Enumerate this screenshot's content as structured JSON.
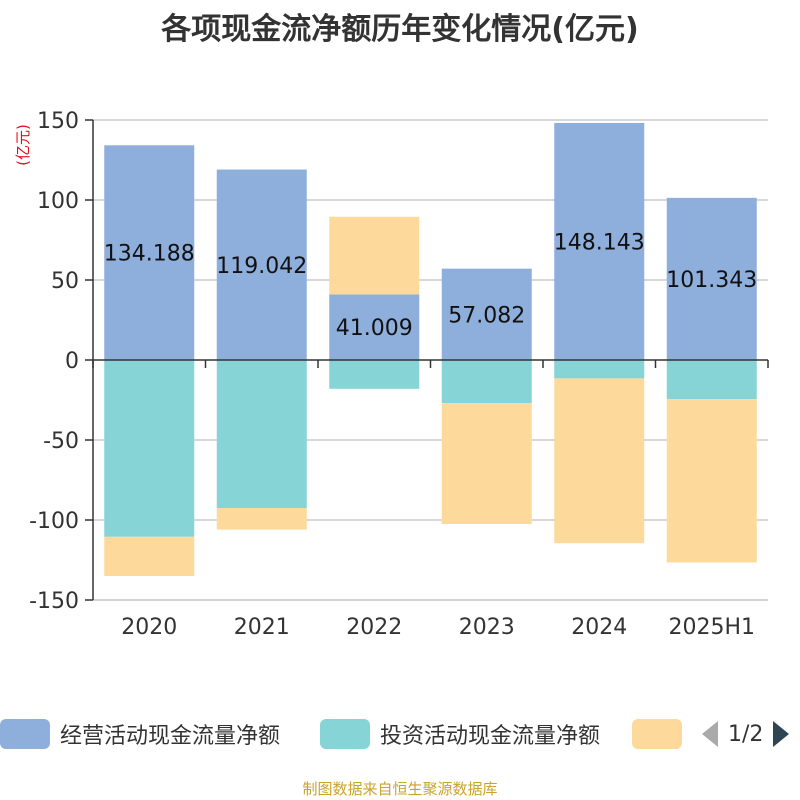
{
  "chart_data": {
    "type": "bar",
    "stacked": true,
    "title": "各项现金流净额历年变化情况(亿元)",
    "ylabel": "(亿元)",
    "ylim": [
      -150,
      150
    ],
    "yticks": [
      150,
      100,
      50,
      0,
      -50,
      -100,
      -150
    ],
    "grid": true,
    "legend_position": "bottom",
    "categories": [
      "2020",
      "2021",
      "2022",
      "2023",
      "2024",
      "2025H1"
    ],
    "series": [
      {
        "name": "经营活动现金流量净额",
        "color": "#8eaedb",
        "values": [
          134.188,
          119.042,
          41.009,
          57.082,
          148.143,
          101.343
        ],
        "labels": [
          "134.188",
          "119.042",
          "41.009",
          "57.082",
          "148.143",
          "101.343"
        ]
      },
      {
        "name": "投资活动现金流量净额",
        "color": "#86d4d6",
        "values": [
          -110.5,
          -92.5,
          -18,
          -27,
          -11.5,
          -24.5
        ]
      },
      {
        "name": "",
        "color": "#fdd99b",
        "values": [
          -24.5,
          -13.5,
          48.5,
          -75.5,
          -103,
          -102
        ]
      }
    ]
  },
  "legend_pager": {
    "text": "1/2"
  },
  "source": "制图数据来自恒生聚源数据库"
}
